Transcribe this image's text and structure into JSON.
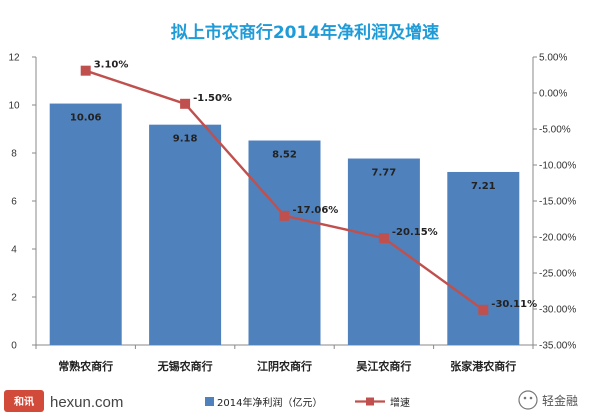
{
  "chart_data": {
    "type": "bar",
    "title": "拟上市农商行2014年净利润及增速",
    "categories": [
      "常熟农商行",
      "无锡农商行",
      "江阴农商行",
      "吴江农商行",
      "张家港农商行"
    ],
    "series": [
      {
        "name": "2014年净利润（亿元）",
        "kind": "bar",
        "axis": "left",
        "values": [
          10.06,
          9.18,
          8.52,
          7.77,
          7.21
        ],
        "labels": [
          "10.06",
          "9.18",
          "8.52",
          "7.77",
          "7.21"
        ]
      },
      {
        "name": "增速",
        "kind": "line",
        "axis": "right",
        "values": [
          3.1,
          -1.5,
          -17.06,
          -20.15,
          -30.11
        ],
        "labels": [
          "3.10%",
          "-1.50%",
          "-17.06%",
          "-20.15%",
          "-30.11%"
        ]
      }
    ],
    "y_left": {
      "min": 0,
      "max": 12,
      "step": 2,
      "ticks": [
        "0",
        "2",
        "4",
        "6",
        "8",
        "10",
        "12"
      ]
    },
    "y_right": {
      "min": -35,
      "max": 5,
      "step": 5,
      "ticks": [
        "-35.00%",
        "-30.00%",
        "-25.00%",
        "-20.00%",
        "-15.00%",
        "-10.00%",
        "-5.00%",
        "0.00%",
        "5.00%"
      ]
    },
    "grid": false,
    "legend_position": "bottom"
  },
  "colors": {
    "bar": "#4F81BD",
    "line": "#C0504D",
    "title": "#1F9BD8",
    "axis": "#888888"
  },
  "watermarks": {
    "left_logo": "和讯",
    "left_site": "hexun.com",
    "right_brand": "轻金融"
  }
}
